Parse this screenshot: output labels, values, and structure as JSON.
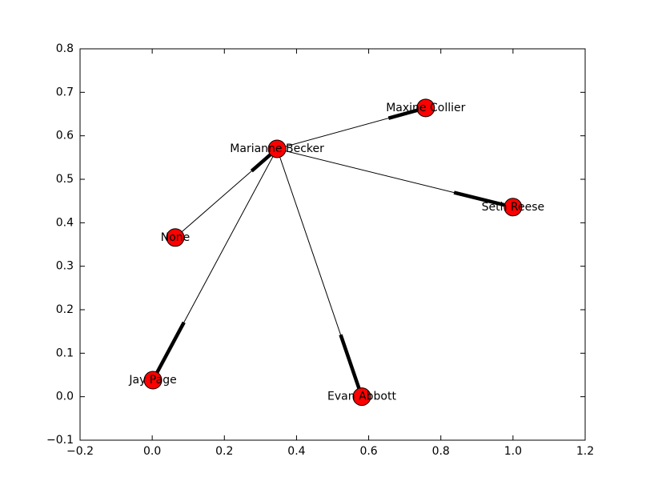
{
  "chart_data": {
    "type": "network",
    "node_color": "#ff0000",
    "edge_color": "#000000",
    "nodes": [
      {
        "label": "Marianne Becker",
        "x": 0.346,
        "y": 0.57
      },
      {
        "label": "Maxine Collier",
        "x": 0.758,
        "y": 0.664
      },
      {
        "label": "Seth Reese",
        "x": 1.0,
        "y": 0.436
      },
      {
        "label": "None",
        "x": 0.064,
        "y": 0.366
      },
      {
        "label": "Jay Page",
        "x": 0.002,
        "y": 0.038
      },
      {
        "label": "Evan Abbott",
        "x": 0.581,
        "y": 0.0
      }
    ],
    "edges": [
      [
        0,
        1
      ],
      [
        0,
        2
      ],
      [
        3,
        0
      ],
      [
        0,
        4
      ],
      [
        0,
        5
      ]
    ],
    "xlim": [
      -0.2,
      1.2
    ],
    "ylim": [
      -0.1,
      0.8
    ],
    "xticks": [
      {
        "value": -0.2,
        "label": "−0.2"
      },
      {
        "value": 0,
        "label": "0.0"
      },
      0.2,
      0.4,
      0.6,
      0.8,
      {
        "value": 1,
        "label": "1.0"
      },
      {
        "value": 1.2,
        "label": "1.2"
      }
    ],
    "yticks": [
      {
        "value": -0.1,
        "label": "−0.1"
      },
      {
        "value": 0,
        "label": "0.0"
      },
      0.1,
      0.2,
      0.3,
      0.4,
      0.5,
      0.6,
      0.7,
      0.8
    ]
  }
}
